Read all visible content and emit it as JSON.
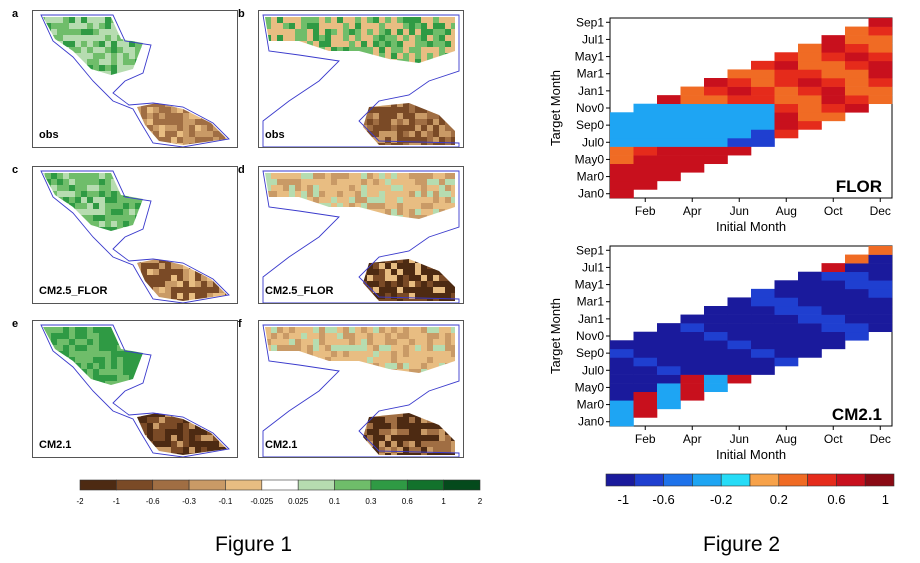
{
  "figure1": {
    "caption": "Figure 1",
    "panels": [
      {
        "letter": "a",
        "label": "obs",
        "region": "americas"
      },
      {
        "letter": "b",
        "label": "obs",
        "region": "asia"
      },
      {
        "letter": "c",
        "label": "CM2.5_FLOR",
        "region": "americas"
      },
      {
        "letter": "d",
        "label": "CM2.5_FLOR",
        "region": "asia"
      },
      {
        "letter": "e",
        "label": "CM2.1",
        "region": "americas"
      },
      {
        "letter": "f",
        "label": "CM2.1",
        "region": "asia"
      }
    ],
    "colorbar": {
      "ticks": [
        "-2",
        "-1",
        "-0.6",
        "-0.3",
        "-0.1",
        "-0.025",
        "0.025",
        "0.1",
        "0.3",
        "0.6",
        "1",
        "2"
      ],
      "colors": [
        "#4d2a12",
        "#7a4a26",
        "#a06e43",
        "#c99a66",
        "#e8bd82",
        "#ffffff",
        "#b6dcb0",
        "#6fbd6a",
        "#2f9a44",
        "#12722c",
        "#044a1c"
      ]
    }
  },
  "chart_data": {
    "type": "heatmap",
    "caption": "Figure 2",
    "xlabel": "Initial Month",
    "ylabel": "Target Month",
    "x_ticks": [
      "Feb",
      "Apr",
      "Jun",
      "Aug",
      "Oct",
      "Dec"
    ],
    "y_ticks": [
      "Jan0",
      "Mar0",
      "May0",
      "Jul0",
      "Sep0",
      "Nov0",
      "Jan1",
      "Mar1",
      "May1",
      "Jul1",
      "Sep1"
    ],
    "x_range": [
      "Jan",
      "Dec"
    ],
    "y_range": [
      "Jan0",
      "Sep1"
    ],
    "panels": [
      {
        "label": "FLOR",
        "pattern": "flor"
      },
      {
        "label": "CM2.1",
        "pattern": "cm21"
      }
    ],
    "colorbar": {
      "ticks": [
        "-1",
        "-0.6",
        "-0.2",
        "0.2",
        "0.6",
        "1"
      ],
      "range": [
        -1,
        1
      ],
      "colors": [
        "#1a1a9c",
        "#1f3fd0",
        "#1e72ea",
        "#1ea5f3",
        "#26dcf7",
        "#f7a24a",
        "#f06b24",
        "#e52b1b",
        "#c8101d",
        "#8a0a14"
      ]
    }
  }
}
